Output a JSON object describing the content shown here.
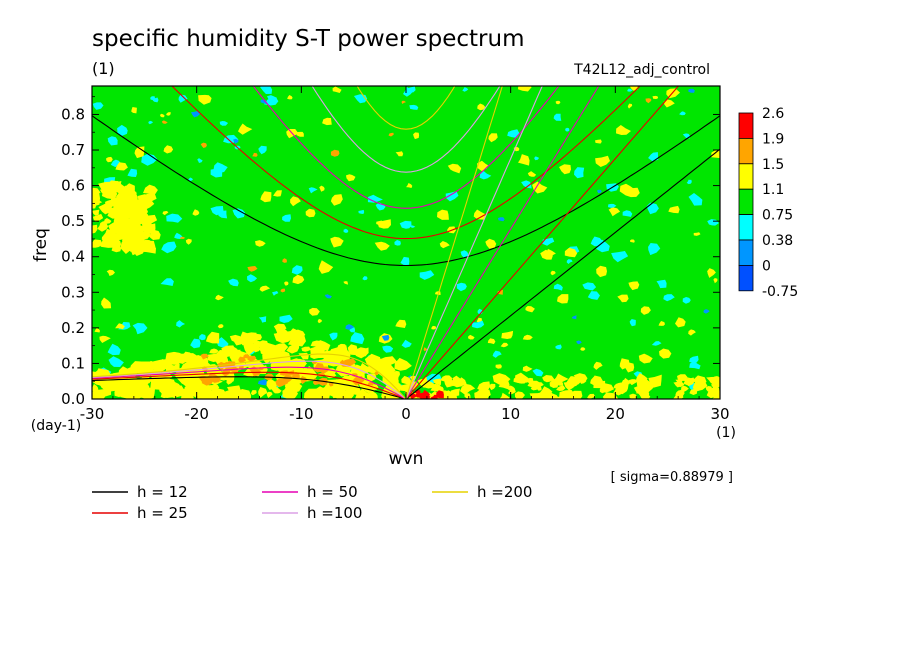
{
  "chart_data": {
    "type": "heatmap",
    "title": "specific humidity S-T power spectrum",
    "subtitle_left": "(1)",
    "subtitle_right": "T42L12_adj_control",
    "xlabel": "wvn",
    "ylabel": "freq",
    "x_unit": "(1)",
    "y_unit": "(day-1)",
    "xlim": [
      -30,
      30
    ],
    "ylim": [
      0.0,
      0.88
    ],
    "x_ticks": [
      -30,
      -20,
      -10,
      0,
      10,
      20,
      30
    ],
    "x_tick_labels": [
      "-30",
      "-20",
      "-10",
      "0",
      "10",
      "20",
      "30"
    ],
    "y_ticks": [
      0.0,
      0.1,
      0.2,
      0.3,
      0.4,
      0.5,
      0.6,
      0.7,
      0.8
    ],
    "y_tick_labels": [
      "0.0",
      "0.1",
      "0.2",
      "0.3",
      "0.4",
      "0.5",
      "0.6",
      "0.7",
      "0.8"
    ],
    "colorbar": {
      "levels": [
        "2.6",
        "1.9",
        "1.5",
        "1.1",
        "0.75",
        "0.38",
        "0",
        "-0.75"
      ],
      "colors": [
        "#ff0000",
        "#ffa500",
        "#ffff00",
        "#00e600",
        "#00ffff",
        "#0096ff",
        "#0050ff"
      ]
    },
    "background_color": "#00e600",
    "sigma_label": "[ sigma=0.88979 ]",
    "dispersion_curves": [
      {
        "name": "h = 12",
        "h": 12,
        "color": "#000000"
      },
      {
        "name": "h = 25",
        "h": 25,
        "color": "#e60000"
      },
      {
        "name": "h = 50",
        "h": 50,
        "color": "#e600b4"
      },
      {
        "name": "h =100",
        "h": 100,
        "color": "#dca0e6"
      },
      {
        "name": "h =200",
        "h": 200,
        "color": "#e6d200"
      }
    ]
  }
}
